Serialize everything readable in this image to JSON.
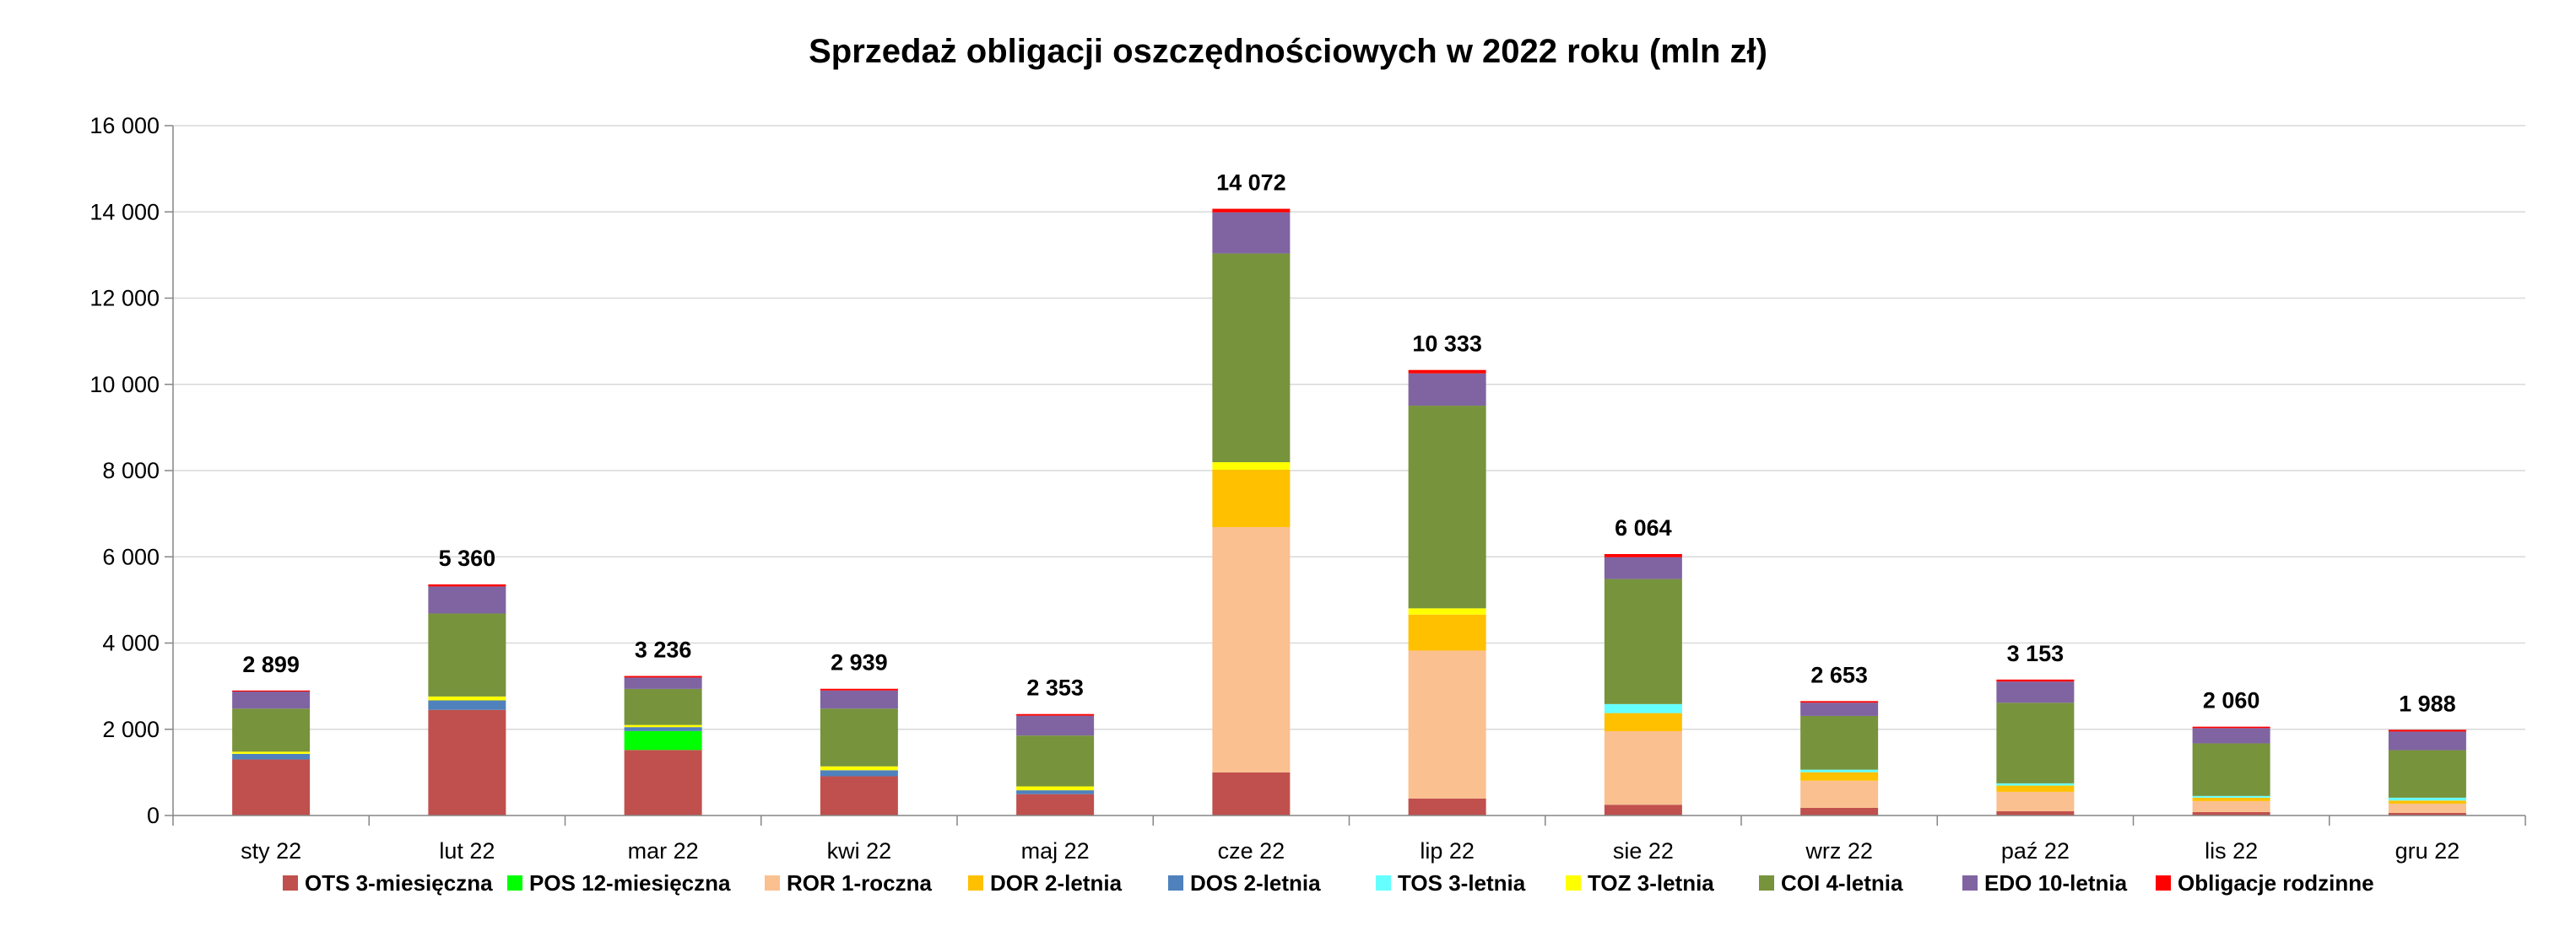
{
  "chart_data": {
    "type": "bar",
    "stacked": true,
    "title": "Sprzedaż obligacji oszczędnościowych w 2022 roku (mln zł)",
    "xlabel": "",
    "ylabel": "",
    "ylim": [
      0,
      16000
    ],
    "yticks": [
      0,
      2000,
      4000,
      6000,
      8000,
      10000,
      12000,
      14000,
      16000
    ],
    "ytick_labels": [
      "0",
      "2 000",
      "4 000",
      "6 000",
      "8 000",
      "10 000",
      "12 000",
      "14 000",
      "16 000"
    ],
    "grid": true,
    "legend_position": "bottom",
    "categories": [
      "sty 22",
      "lut 22",
      "mar 22",
      "kwi 22",
      "maj 22",
      "cze 22",
      "lip 22",
      "sie 22",
      "wrz 22",
      "paź 22",
      "lis 22",
      "gru 22"
    ],
    "totals": [
      2899,
      5360,
      3236,
      2939,
      2353,
      14072,
      10333,
      6064,
      2653,
      3153,
      2060,
      1988
    ],
    "total_labels": [
      "2 899",
      "5 360",
      "3 236",
      "2 939",
      "2 353",
      "14 072",
      "10 333",
      "6 064",
      "2 653",
      "3 153",
      "2 060",
      "1 988"
    ],
    "series": [
      {
        "name": "OTS 3-miesięczna",
        "color": "#C0504D",
        "values": [
          1300,
          2450,
          1520,
          910,
          495,
          1000,
          395,
          250,
          177,
          98,
          79,
          59
        ]
      },
      {
        "name": "POS 12-miesięczna",
        "color": "#00FF00",
        "values": [
          0,
          0,
          440,
          0,
          0,
          0,
          0,
          0,
          0,
          0,
          0,
          0
        ]
      },
      {
        "name": "ROR 1-roczna",
        "color": "#FAC090",
        "values": [
          0,
          0,
          0,
          0,
          0,
          5690,
          3430,
          1705,
          630,
          452,
          256,
          216
        ]
      },
      {
        "name": "DOR 2-letnia",
        "color": "#FFC000",
        "values": [
          0,
          0,
          0,
          0,
          0,
          1330,
          835,
          420,
          197,
          144,
          79,
          72
        ]
      },
      {
        "name": "DOS 2-letnia",
        "color": "#4F81BD",
        "values": [
          130,
          220,
          90,
          140,
          90,
          0,
          0,
          0,
          0,
          0,
          0,
          0
        ]
      },
      {
        "name": "TOS 3-letnia",
        "color": "#66FFFF",
        "values": [
          0,
          0,
          0,
          0,
          0,
          0,
          0,
          210,
          59,
          52,
          39,
          66
        ]
      },
      {
        "name": "TOZ 3-letnia",
        "color": "#FFFF00",
        "values": [
          50,
          90,
          50,
          90,
          90,
          175,
          145,
          0,
          0,
          0,
          0,
          0
        ]
      },
      {
        "name": "COI 4-letnia",
        "color": "#77933C",
        "values": [
          1000,
          1925,
          836,
          1340,
          1180,
          4840,
          4700,
          2900,
          1246,
          1869,
          1220,
          1102
        ]
      },
      {
        "name": "EDO 10-letnia",
        "color": "#8064A2",
        "values": [
          395,
          627,
          264,
          420,
          460,
          955,
          750,
          505,
          308,
          492,
          354,
          433
        ]
      },
      {
        "name": "Obligacje rodzinne",
        "color": "#FF0000",
        "values": [
          24,
          48,
          36,
          39,
          38,
          82,
          78,
          74,
          36,
          46,
          33,
          40
        ]
      }
    ]
  }
}
